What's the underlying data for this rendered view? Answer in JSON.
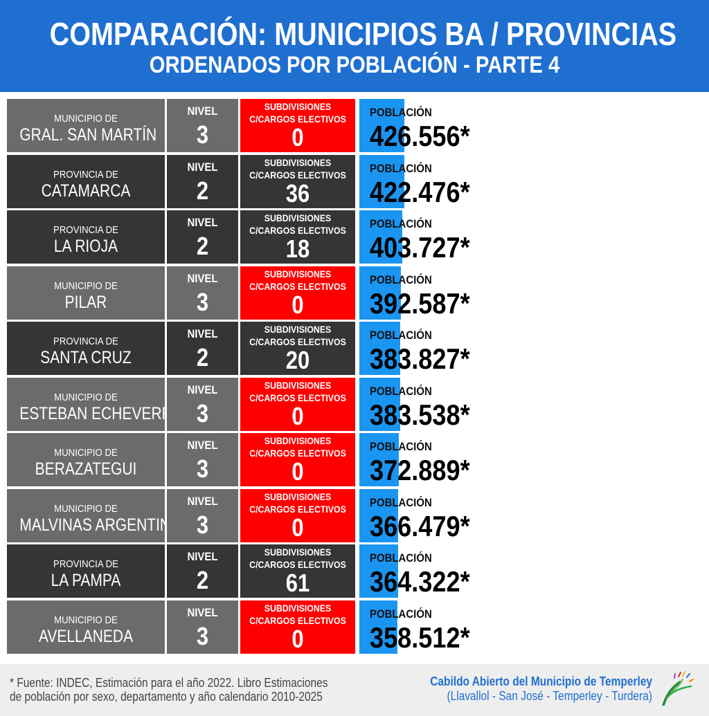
{
  "header": {
    "title": "COMPARACIÓN: MUNICIPIOS BA / PROVINCIAS",
    "subtitle": "ORDENADOS POR POBLACIÓN - PARTE 4"
  },
  "labels": {
    "nivel": "NIVEL",
    "subdiv_line1": "SUBDIVISIONES",
    "subdiv_line2": "C/CARGOS ELECTIVOS",
    "poblacion": "POBLACIÓN"
  },
  "colors": {
    "header_bg": "#1f6fd1",
    "municipio_bg": "#6b6b6b",
    "provincia_bg": "#353535",
    "zero_subdiv_bg": "#ff0000",
    "population_bar": "#1b95f2"
  },
  "chart_data": {
    "type": "bar",
    "orientation": "horizontal",
    "population_axis_max": 3300000,
    "rows": [
      {
        "type_label": "MUNICIPIO DE",
        "name": "GRAL. SAN MARTÍN",
        "nivel": "3",
        "subdivisiones": "0",
        "poblacion": 426556,
        "poblacion_label": "426.556*"
      },
      {
        "type_label": "PROVINCIA DE",
        "name": "CATAMARCA",
        "nivel": "2",
        "subdivisiones": "36",
        "poblacion": 422476,
        "poblacion_label": "422.476*"
      },
      {
        "type_label": "PROVINCIA DE",
        "name": "LA RIOJA",
        "nivel": "2",
        "subdivisiones": "18",
        "poblacion": 403727,
        "poblacion_label": "403.727*"
      },
      {
        "type_label": "MUNICIPIO DE",
        "name": "PILAR",
        "nivel": "3",
        "subdivisiones": "0",
        "poblacion": 392587,
        "poblacion_label": "392.587*"
      },
      {
        "type_label": "PROVINCIA DE",
        "name": "SANTA CRUZ",
        "nivel": "2",
        "subdivisiones": "20",
        "poblacion": 383827,
        "poblacion_label": "383.827*"
      },
      {
        "type_label": "MUNICIPIO DE",
        "name": "ESTEBAN ECHEVERRÍA",
        "nivel": "3",
        "subdivisiones": "0",
        "poblacion": 383538,
        "poblacion_label": "383.538*"
      },
      {
        "type_label": "MUNICIPIO DE",
        "name": "BERAZATEGUI",
        "nivel": "3",
        "subdivisiones": "0",
        "poblacion": 372889,
        "poblacion_label": "372.889*"
      },
      {
        "type_label": "MUNICIPIO DE",
        "name": "MALVINAS ARGENTINAS",
        "nivel": "3",
        "subdivisiones": "0",
        "poblacion": 366479,
        "poblacion_label": "366.479*"
      },
      {
        "type_label": "PROVINCIA DE",
        "name": "LA PAMPA",
        "nivel": "2",
        "subdivisiones": "61",
        "poblacion": 364322,
        "poblacion_label": "364.322*"
      },
      {
        "type_label": "MUNICIPIO DE",
        "name": "AVELLANEDA",
        "nivel": "3",
        "subdivisiones": "0",
        "poblacion": 358512,
        "poblacion_label": "358.512*"
      }
    ]
  },
  "footer": {
    "source_line1": "* Fuente: INDEC, Estimación para el año 2022. Libro Estimaciones",
    "source_line2": "de población por sexo, departamento y año calendario 2010-2025",
    "credit_line1": "Cabildo Abierto del Municipio de Temperley",
    "credit_line2": "(Llavallol - San José - Temperley - Turdera)",
    "logo_icon": "cabildo-leaf-logo-icon"
  }
}
